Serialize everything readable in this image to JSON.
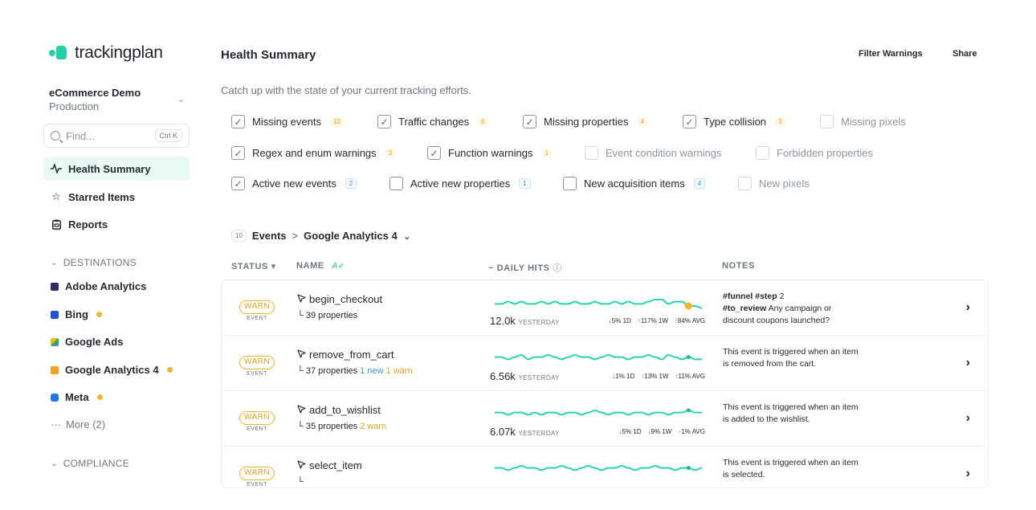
{
  "brand": {
    "name": "trackingplan",
    "accent": "#1fd1a4"
  },
  "workspace": {
    "name": "eCommerce Demo",
    "env": "Production"
  },
  "search": {
    "placeholder": "Find...",
    "shortcut": "Ctrl K"
  },
  "nav": [
    {
      "label": "Health Summary",
      "icon": "pulse-icon",
      "active": true
    },
    {
      "label": "Starred Items",
      "icon": "star-icon"
    },
    {
      "label": "Reports",
      "icon": "clipboard-icon"
    }
  ],
  "destinations": {
    "heading": "DESTINATIONS",
    "items": [
      {
        "label": "Adobe Analytics",
        "color": "#2d2b6e",
        "warn": false
      },
      {
        "label": "Bing",
        "color": "#1e4fd6",
        "warn": true
      },
      {
        "label": "Google Ads",
        "color": "#34a853",
        "warn": false
      },
      {
        "label": "Google Analytics 4",
        "color": "#f4a21d",
        "warn": true
      },
      {
        "label": "Meta",
        "color": "#1877f2",
        "warn": true
      }
    ],
    "more": "More (2)"
  },
  "compliance": {
    "heading": "COMPLIANCE"
  },
  "header": {
    "title": "Health Summary",
    "filter_btn": "Filter Warnings",
    "share_btn": "Share"
  },
  "subtitle": "Catch up with the state of your current tracking efforts.",
  "filters": [
    {
      "label": "Missing events",
      "count": "10",
      "checked": true,
      "style": "orange"
    },
    {
      "label": "Traffic changes",
      "count": "6",
      "checked": true,
      "style": "orange"
    },
    {
      "label": "Missing properties",
      "count": "4",
      "checked": true,
      "style": "orange"
    },
    {
      "label": "Type collision",
      "count": "3",
      "checked": true,
      "style": "orange"
    },
    {
      "label": "Missing pixels",
      "count": "",
      "checked": false,
      "style": "none"
    },
    {
      "label": "Regex and enum warnings",
      "count": "3",
      "checked": true,
      "style": "orange"
    },
    {
      "label": "Function warnings",
      "count": "1",
      "checked": true,
      "style": "orange"
    },
    {
      "label": "Event condition warnings",
      "count": "",
      "checked": false,
      "style": "none"
    },
    {
      "label": "Forbidden properties",
      "count": "",
      "checked": false,
      "style": "none"
    },
    {
      "label": "Active new events",
      "count": "2",
      "checked": true,
      "style": "blue"
    },
    {
      "label": "Active new properties",
      "count": "1",
      "checked": false,
      "style": "blue"
    },
    {
      "label": "New acquisition items",
      "count": "4",
      "checked": false,
      "style": "blue"
    },
    {
      "label": "New pixels",
      "count": "",
      "checked": false,
      "style": "none"
    }
  ],
  "breadcrumb": {
    "count": "10",
    "section": "Events",
    "separator": ">",
    "destination": "Google Analytics 4"
  },
  "columns": {
    "status": "STATUS",
    "name": "NAME",
    "hits": "~ DAILY HITS",
    "notes": "NOTES"
  },
  "events": [
    {
      "status": "WARN",
      "type": "EVENT",
      "name": "begin_checkout",
      "props": "39 properties",
      "new": "",
      "warn": "",
      "hits": "12.0k",
      "hits_label": "YESTERDAY",
      "d1": "5% 1D",
      "d1_dir": "down",
      "w1": "117% 1W",
      "w1_dir": "up",
      "avg": "84% AVG",
      "avg_dir": "up",
      "note_tags": "#funnel #step",
      "note_num": "2",
      "note_tag2": "#to_review",
      "note": "Any campaign or discount coupons launched?",
      "spark": [
        10,
        10,
        11,
        10,
        11,
        10,
        10,
        11,
        10,
        11,
        10,
        10,
        11,
        10,
        10,
        11,
        10,
        10,
        11,
        10,
        11,
        10,
        10,
        11,
        12,
        12,
        10,
        11,
        11,
        9,
        9,
        8
      ],
      "dot_color": "#f3b62b"
    },
    {
      "status": "WARN",
      "type": "EVENT",
      "name": "remove_from_cart",
      "props": "37 properties",
      "new": "1 new",
      "warn": "1 warn",
      "hits": "6.56k",
      "hits_label": "YESTERDAY",
      "d1": "1% 1D",
      "d1_dir": "down",
      "w1": "13% 1W",
      "w1_dir": "up",
      "avg": "11% AVG",
      "avg_dir": "up",
      "note_tags": "",
      "note_num": "",
      "note_tag2": "",
      "note": "This event is triggered when an item is removed from the cart.",
      "spark": [
        11,
        11,
        10,
        11,
        12,
        10,
        11,
        11,
        12,
        11,
        10,
        11,
        12,
        11,
        11,
        10,
        11,
        12,
        11,
        11,
        10,
        11,
        11,
        12,
        11,
        10,
        12,
        11,
        10,
        11,
        10,
        10
      ],
      "dot_color": "#1fb98b"
    },
    {
      "status": "WARN",
      "type": "EVENT",
      "name": "add_to_wishlist",
      "props": "35 properties",
      "new": "",
      "warn": "2 warn",
      "hits": "6.07k",
      "hits_label": "YESTERDAY",
      "d1": "5% 1D",
      "d1_dir": "down",
      "w1": "9% 1W",
      "w1_dir": "down",
      "avg": "1% AVG",
      "avg_dir": "up",
      "note_tags": "",
      "note_num": "",
      "note_tag2": "",
      "note": "This event is triggered when an item is added to the wishlist.",
      "spark": [
        11,
        11,
        10,
        11,
        11,
        10,
        11,
        10,
        11,
        11,
        10,
        11,
        11,
        10,
        11,
        12,
        11,
        10,
        11,
        11,
        10,
        11,
        11,
        10,
        11,
        11,
        10,
        11,
        11,
        12,
        11,
        11
      ],
      "dot_color": "#1fb98b"
    },
    {
      "status": "WARN",
      "type": "EVENT",
      "name": "select_item",
      "props": "",
      "new": "",
      "warn": "",
      "hits": "",
      "hits_label": "",
      "d1": "",
      "d1_dir": "down",
      "w1": "",
      "w1_dir": "up",
      "avg": "",
      "avg_dir": "up",
      "note_tags": "",
      "note_num": "",
      "note_tag2": "",
      "note": "This event is triggered when an item is selected.",
      "spark": [
        11,
        11,
        10,
        11,
        12,
        11,
        11,
        10,
        11,
        11,
        12,
        11,
        10,
        11,
        12,
        11,
        10,
        11,
        11,
        12,
        11,
        10,
        11,
        11,
        12,
        11,
        11,
        10,
        11,
        11,
        10,
        11
      ],
      "dot_color": "#1fb98b"
    }
  ]
}
